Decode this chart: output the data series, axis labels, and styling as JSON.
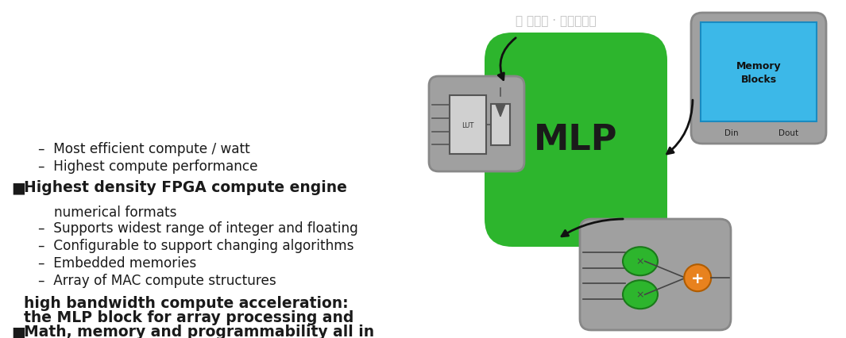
{
  "bg_color": "#ffffff",
  "bullet1_line1": "Math, memory and programmability all in",
  "bullet1_line2": "the MLP block for array processing and",
  "bullet1_line3": "high bandwidth compute acceleration:",
  "sub1": "Array of MAC compute structures",
  "sub2": "Embedded memories",
  "sub3": "Configurable to support changing algorithms",
  "sub4a": "Supports widest range of integer and floating",
  "sub4b": "numerical formats",
  "bullet2": "Highest density FPGA compute engine",
  "sub5": "Highest compute performance",
  "sub6": "Most efficient compute / watt",
  "mlp_color": "#2db52d",
  "gray_color": "#a0a0a0",
  "gray_edge": "#888888",
  "orange_color": "#e8821e",
  "neuron_green": "#2db52d",
  "blue_color": "#3cb8e8",
  "arrow_color": "#111111",
  "text_color": "#1a1a1a",
  "watermark_color": "#c0c0c0"
}
